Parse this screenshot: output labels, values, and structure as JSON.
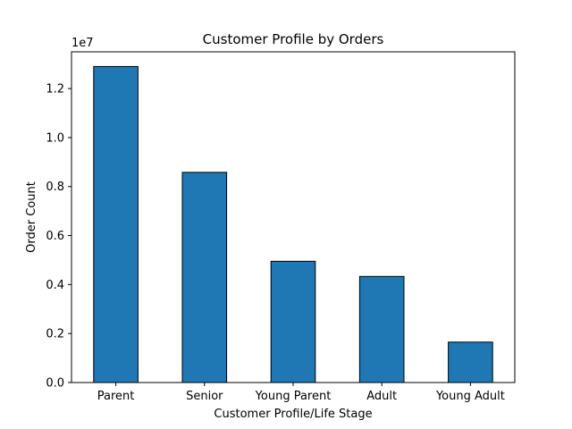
{
  "chart_data": {
    "type": "bar",
    "title": "Customer Profile by Orders",
    "xlabel": "Customer Profile/Life Stage",
    "ylabel": "Order Count",
    "y_offset_label": "1e7",
    "categories": [
      "Parent",
      "Senior",
      "Young Parent",
      "Adult",
      "Young Adult"
    ],
    "values": [
      12900000,
      8580000,
      4950000,
      4330000,
      1650000
    ],
    "ylim": [
      0,
      13500000
    ],
    "yticks": [
      0,
      2000000,
      4000000,
      6000000,
      8000000,
      10000000,
      12000000
    ],
    "ytick_labels": [
      "0.0",
      "0.2",
      "0.4",
      "0.6",
      "0.8",
      "1.0",
      "1.2"
    ],
    "grid": false,
    "legend": "none",
    "bar_color": "#1f77b4",
    "bar_edge_color": "#000000"
  }
}
